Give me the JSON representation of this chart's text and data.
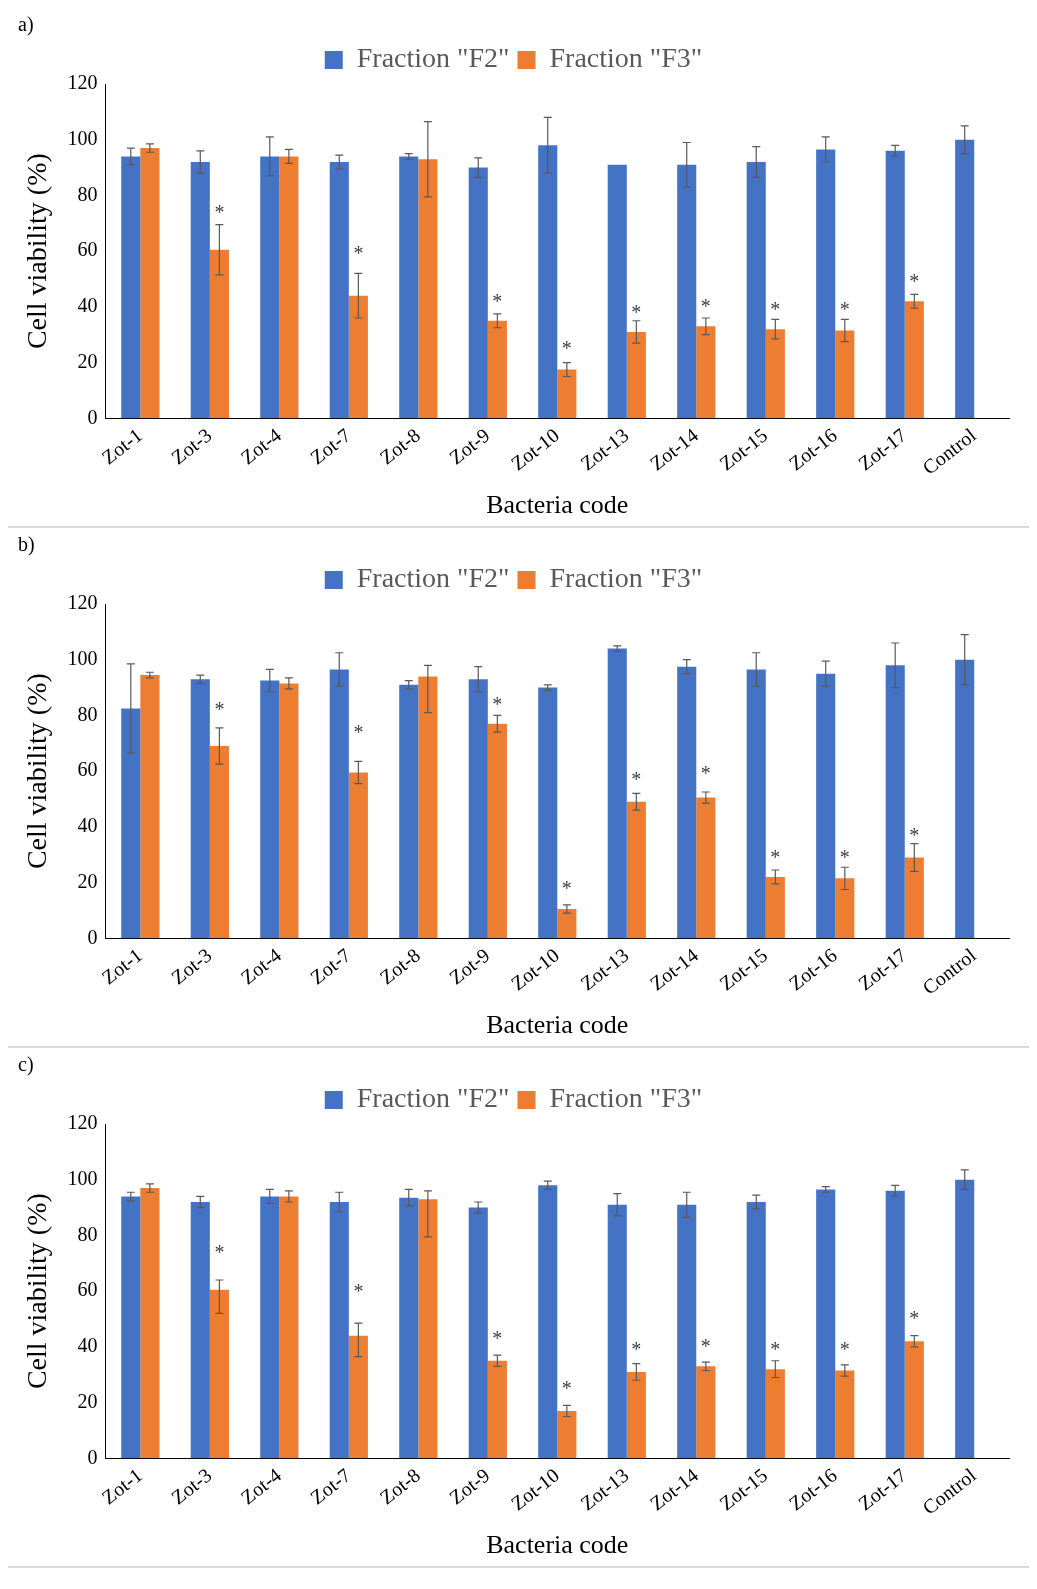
{
  "chart_data": [
    {
      "type": "bar",
      "title": "a)",
      "xlabel": "Bacteria code",
      "ylabel": "Cell viability (%)",
      "categories": [
        "Zot-1",
        "Zot-3",
        "Zot-4",
        "Zot-7",
        "Zot-8",
        "Zot-9",
        "Zot-10",
        "Zot-13",
        "Zot-14",
        "Zot-15",
        "Zot-16",
        "Zot-17",
        "Control"
      ],
      "ylim": [
        0,
        120
      ],
      "yticks": [
        0,
        20,
        40,
        60,
        80,
        100,
        120
      ],
      "grid": false,
      "legend": "top",
      "series": [
        {
          "name": "Fraction \"F2\"",
          "color": "#4472c4",
          "values": [
            94,
            92,
            94,
            92,
            94,
            90,
            98,
            91,
            91,
            92,
            96.5,
            96,
            100
          ],
          "errors": [
            3,
            4,
            7,
            2.5,
            1,
            3.5,
            10,
            null,
            8,
            5.5,
            4.5,
            2,
            5
          ]
        },
        {
          "name": "Fraction \"F3\"",
          "color": "#ed7d31",
          "values": [
            97,
            60.5,
            94,
            44,
            93,
            35,
            17.5,
            31,
            33,
            32,
            31.5,
            42,
            null
          ],
          "errors": [
            1.5,
            9,
            2.5,
            8,
            13.5,
            2.5,
            2.5,
            4,
            3,
            3.5,
            4,
            2.5,
            null
          ]
        }
      ],
      "annotations": [
        {
          "text": "*",
          "x": "Zot-3",
          "y": 75
        },
        {
          "text": "*",
          "x": "Zot-7",
          "y": 60
        },
        {
          "text": "*",
          "x": "Zot-9",
          "y": 43
        },
        {
          "text": "*",
          "x": "Zot-10",
          "y": 26
        },
        {
          "text": "*",
          "x": "Zot-13",
          "y": 39
        },
        {
          "text": "*",
          "x": "Zot-14",
          "y": 41
        },
        {
          "text": "*",
          "x": "Zot-15",
          "y": 40
        },
        {
          "text": "*",
          "x": "Zot-16",
          "y": 40
        },
        {
          "text": "*",
          "x": "Zot-17",
          "y": 50
        }
      ]
    },
    {
      "type": "bar",
      "title": "b)",
      "xlabel": "Bacteria code",
      "ylabel": "Cell viability (%)",
      "categories": [
        "Zot-1",
        "Zot-3",
        "Zot-4",
        "Zot-7",
        "Zot-8",
        "Zot-9",
        "Zot-10",
        "Zot-13",
        "Zot-14",
        "Zot-15",
        "Zot-16",
        "Zot-17",
        "Control"
      ],
      "ylim": [
        0,
        120
      ],
      "yticks": [
        0,
        20,
        40,
        60,
        80,
        100,
        120
      ],
      "grid": false,
      "legend": "top",
      "series": [
        {
          "name": "Fraction \"F2\"",
          "color": "#4472c4",
          "values": [
            82.5,
            93,
            92.5,
            96.5,
            91,
            93,
            90,
            104,
            97.5,
            96.5,
            95,
            98,
            100
          ],
          "errors": [
            16,
            1.5,
            4,
            6,
            1.5,
            4.5,
            1,
            1,
            2.5,
            6,
            4.5,
            8,
            9
          ]
        },
        {
          "name": "Fraction \"F3\"",
          "color": "#ed7d31",
          "values": [
            94.5,
            69,
            91.5,
            59.5,
            94,
            77,
            10.5,
            49,
            50.5,
            22,
            21.5,
            29,
            null
          ],
          "errors": [
            1,
            6.5,
            2,
            4,
            [
              81,
              98
            ],
            3,
            1.5,
            3,
            2,
            2.5,
            4,
            5,
            null
          ]
        }
      ],
      "annotations": [
        {
          "text": "*",
          "x": "Zot-3",
          "y": 83
        },
        {
          "text": "*",
          "x": "Zot-7",
          "y": 75
        },
        {
          "text": "*",
          "x": "Zot-9",
          "y": 85
        },
        {
          "text": "*",
          "x": "Zot-10",
          "y": 19
        },
        {
          "text": "*",
          "x": "Zot-13",
          "y": 58
        },
        {
          "text": "*",
          "x": "Zot-14",
          "y": 60
        },
        {
          "text": "*",
          "x": "Zot-15",
          "y": 30
        },
        {
          "text": "*",
          "x": "Zot-16",
          "y": 30
        },
        {
          "text": "*",
          "x": "Zot-17",
          "y": 38
        }
      ]
    },
    {
      "type": "bar",
      "title": "c)",
      "xlabel": "Bacteria code",
      "ylabel": "Cell viability (%)",
      "categories": [
        "Zot-1",
        "Zot-3",
        "Zot-4",
        "Zot-7",
        "Zot-8",
        "Zot-9",
        "Zot-10",
        "Zot-13",
        "Zot-14",
        "Zot-15",
        "Zot-16",
        "Zot-17",
        "Control"
      ],
      "ylim": [
        0,
        120
      ],
      "yticks": [
        0,
        20,
        40,
        60,
        80,
        100,
        120
      ],
      "grid": false,
      "legend": "top",
      "series": [
        {
          "name": "Fraction \"F2\"",
          "color": "#4472c4",
          "values": [
            94,
            92,
            94,
            92,
            93.5,
            90,
            98,
            91,
            91,
            92,
            96.5,
            96,
            100
          ],
          "errors": [
            1.5,
            2,
            2.5,
            3.5,
            3,
            2,
            1.5,
            4,
            4.5,
            2.5,
            1,
            2,
            3.5
          ]
        },
        {
          "name": "Fraction \"F3\"",
          "color": "#ed7d31",
          "values": [
            97,
            60.5,
            94,
            44,
            93,
            35,
            17,
            31,
            33,
            32,
            31.5,
            42,
            null
          ],
          "errors": [
            1.5,
            [
              52,
              64
            ],
            2,
            [
              36.5,
              48.5
            ],
            [
              79.5,
              96
            ],
            2,
            2,
            3,
            1.5,
            3,
            2,
            2,
            null
          ]
        }
      ],
      "annotations": [
        {
          "text": "*",
          "x": "Zot-3",
          "y": 75
        },
        {
          "text": "*",
          "x": "Zot-7",
          "y": 61
        },
        {
          "text": "*",
          "x": "Zot-9",
          "y": 44
        },
        {
          "text": "*",
          "x": "Zot-10",
          "y": 26
        },
        {
          "text": "*",
          "x": "Zot-13",
          "y": 40
        },
        {
          "text": "*",
          "x": "Zot-14",
          "y": 41
        },
        {
          "text": "*",
          "x": "Zot-15",
          "y": 40
        },
        {
          "text": "*",
          "x": "Zot-16",
          "y": 40
        },
        {
          "text": "*",
          "x": "Zot-17",
          "y": 51
        }
      ]
    }
  ]
}
